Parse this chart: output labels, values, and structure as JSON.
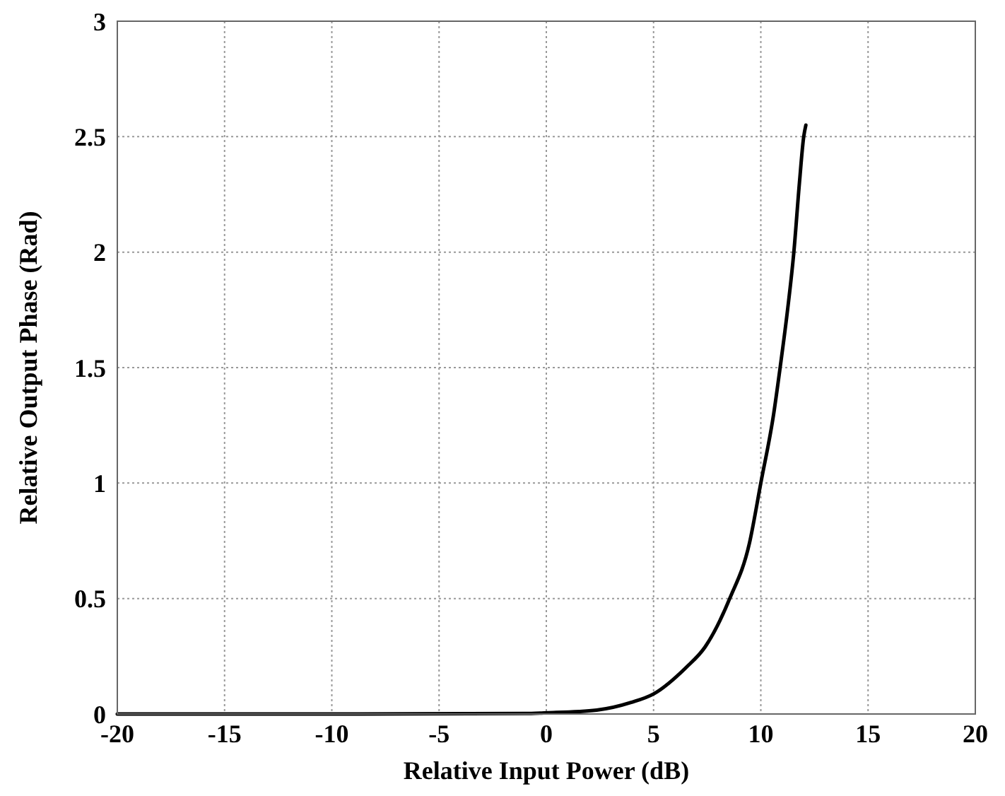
{
  "chart_data": {
    "type": "line",
    "xlabel": "Relative Input Power (dB)",
    "ylabel": "Relative Output Phase (Rad)",
    "xlim": [
      -20,
      20
    ],
    "xticks": [
      -20,
      -15,
      -10,
      -5,
      0,
      5,
      10,
      15,
      20
    ],
    "ylim": [
      0,
      3
    ],
    "yticks": [
      0,
      0.5,
      1,
      1.5,
      2,
      2.5,
      3
    ],
    "grid": true,
    "marker": "none",
    "line_style": "solid",
    "series": [
      {
        "color": "#000000",
        "x": [
          -20,
          -10,
          -1,
          0,
          2.35,
          3.95,
          5,
          6.5,
          7.4,
          8.55,
          9.47,
          10,
          10.6,
          10.9,
          11.26,
          11.54,
          11.8,
          12,
          12.1
        ],
        "values": [
          0,
          0,
          0.002,
          0.005,
          0.017,
          0.05,
          0.087,
          0.2,
          0.29,
          0.5,
          0.74,
          1,
          1.3,
          1.5,
          1.76,
          2,
          2.3,
          2.5,
          2.55
        ]
      }
    ]
  }
}
